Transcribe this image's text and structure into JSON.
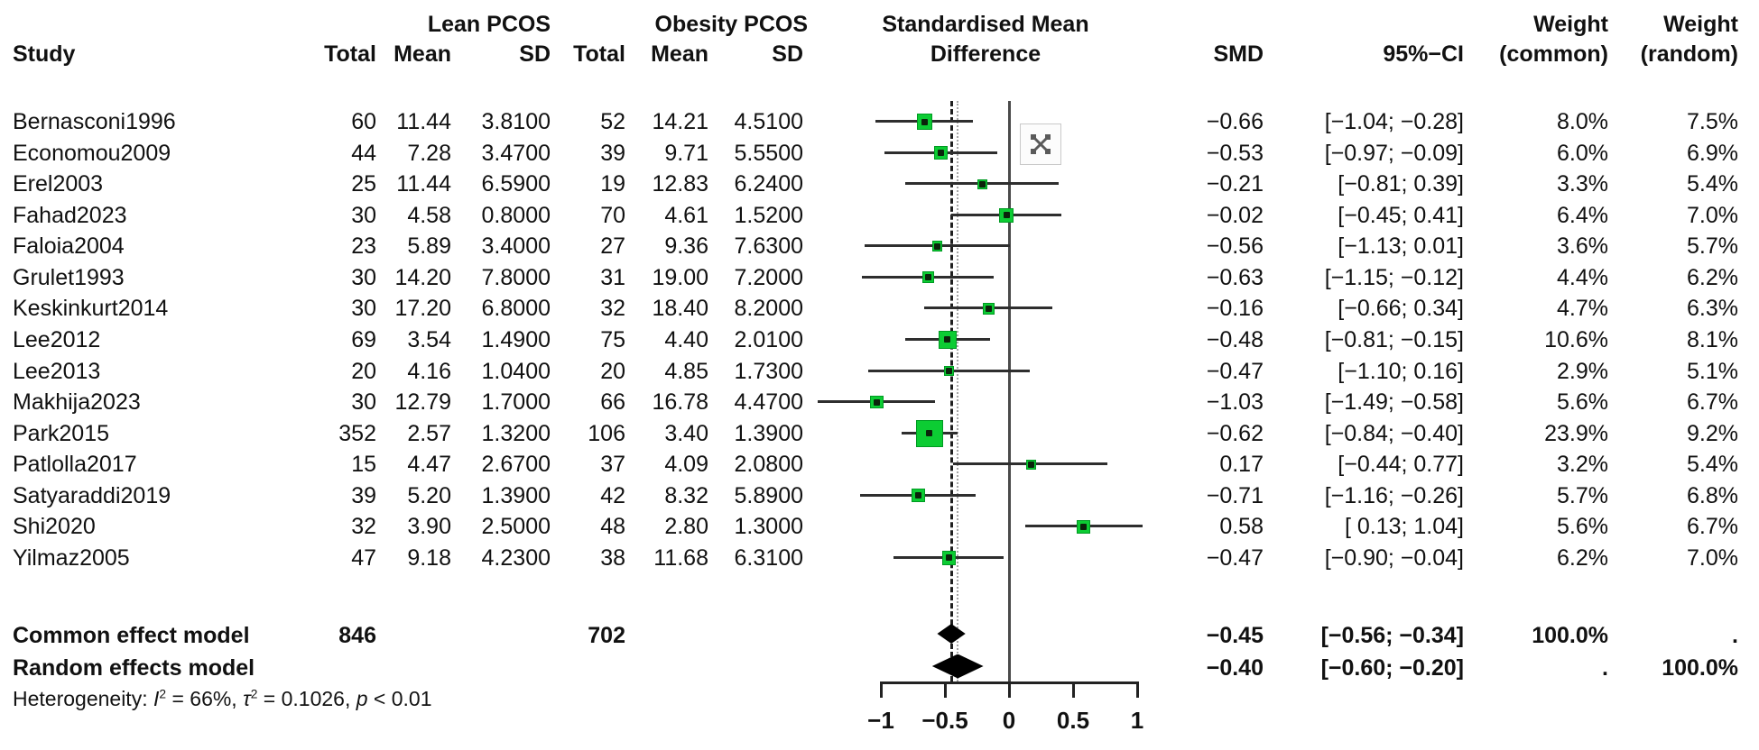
{
  "header": {
    "study": "Study",
    "group1_title": "Lean PCOS",
    "group2_title": "Obesity PCOS",
    "total_label": "Total",
    "mean_label": "Mean",
    "sd_label": "SD",
    "smd_title_line1": "Standardised Mean",
    "smd_title_line2": "Difference",
    "smd_label": "SMD",
    "ci_label": "95%−CI",
    "weight_label": "Weight",
    "weight_common_sub": "(common)",
    "weight_random_sub": "(random)"
  },
  "icons": {
    "broken_image_icon": "✕"
  },
  "colors": {
    "square_green": "#0ccc33",
    "diamond_black": "#000000",
    "zero_line": "#4a4a4a",
    "dashed_line": "#1f1f1f",
    "dotted_line": "#a6a6a6"
  },
  "chart_data": {
    "type": "forest",
    "effect_measure": "Standardised Mean Difference",
    "axis": {
      "tick_values": [
        -1,
        -0.5,
        0,
        0.5,
        1
      ],
      "tick_labels": [
        "−1",
        "−0.5",
        "0",
        "0.5",
        "1"
      ]
    },
    "reference_line": 0,
    "dashed_line_at": -0.45,
    "dotted_line_at": -0.4,
    "studies": [
      {
        "name": "Bernasconi1996",
        "lean_total": "60",
        "lean_mean": "11.44",
        "lean_sd": "3.8100",
        "ob_total": "52",
        "ob_mean": "14.21",
        "ob_sd": "4.5100",
        "smd": -0.66,
        "lo": -1.04,
        "hi": -0.28,
        "smd_text": "−0.66",
        "ci_text": "[−1.04; −0.28]",
        "w_common": "8.0%",
        "w_random": "7.5%",
        "w_common_val": 8.0
      },
      {
        "name": "Economou2009",
        "lean_total": "44",
        "lean_mean": "7.28",
        "lean_sd": "3.4700",
        "ob_total": "39",
        "ob_mean": "9.71",
        "ob_sd": "5.5500",
        "smd": -0.53,
        "lo": -0.97,
        "hi": -0.09,
        "smd_text": "−0.53",
        "ci_text": "[−0.97; −0.09]",
        "w_common": "6.0%",
        "w_random": "6.9%",
        "w_common_val": 6.0
      },
      {
        "name": "Erel2003",
        "lean_total": "25",
        "lean_mean": "11.44",
        "lean_sd": "6.5900",
        "ob_total": "19",
        "ob_mean": "12.83",
        "ob_sd": "6.2400",
        "smd": -0.21,
        "lo": -0.81,
        "hi": 0.39,
        "smd_text": "−0.21",
        "ci_text": "[−0.81; 0.39]",
        "w_common": "3.3%",
        "w_random": "5.4%",
        "w_common_val": 3.3
      },
      {
        "name": "Fahad2023",
        "lean_total": "30",
        "lean_mean": "4.58",
        "lean_sd": "0.8000",
        "ob_total": "70",
        "ob_mean": "4.61",
        "ob_sd": "1.5200",
        "smd": -0.02,
        "lo": -0.45,
        "hi": 0.41,
        "smd_text": "−0.02",
        "ci_text": "[−0.45; 0.41]",
        "w_common": "6.4%",
        "w_random": "7.0%",
        "w_common_val": 6.4
      },
      {
        "name": "Faloia2004",
        "lean_total": "23",
        "lean_mean": "5.89",
        "lean_sd": "3.4000",
        "ob_total": "27",
        "ob_mean": "9.36",
        "ob_sd": "7.6300",
        "smd": -0.56,
        "lo": -1.13,
        "hi": 0.01,
        "smd_text": "−0.56",
        "ci_text": "[−1.13; 0.01]",
        "w_common": "3.6%",
        "w_random": "5.7%",
        "w_common_val": 3.6
      },
      {
        "name": "Grulet1993",
        "lean_total": "30",
        "lean_mean": "14.20",
        "lean_sd": "7.8000",
        "ob_total": "31",
        "ob_mean": "19.00",
        "ob_sd": "7.2000",
        "smd": -0.63,
        "lo": -1.15,
        "hi": -0.12,
        "smd_text": "−0.63",
        "ci_text": "[−1.15; −0.12]",
        "w_common": "4.4%",
        "w_random": "6.2%",
        "w_common_val": 4.4
      },
      {
        "name": "Keskinkurt2014",
        "lean_total": "30",
        "lean_mean": "17.20",
        "lean_sd": "6.8000",
        "ob_total": "32",
        "ob_mean": "18.40",
        "ob_sd": "8.2000",
        "smd": -0.16,
        "lo": -0.66,
        "hi": 0.34,
        "smd_text": "−0.16",
        "ci_text": "[−0.66; 0.34]",
        "w_common": "4.7%",
        "w_random": "6.3%",
        "w_common_val": 4.7
      },
      {
        "name": "Lee2012",
        "lean_total": "69",
        "lean_mean": "3.54",
        "lean_sd": "1.4900",
        "ob_total": "75",
        "ob_mean": "4.40",
        "ob_sd": "2.0100",
        "smd": -0.48,
        "lo": -0.81,
        "hi": -0.15,
        "smd_text": "−0.48",
        "ci_text": "[−0.81; −0.15]",
        "w_common": "10.6%",
        "w_random": "8.1%",
        "w_common_val": 10.6
      },
      {
        "name": "Lee2013",
        "lean_total": "20",
        "lean_mean": "4.16",
        "lean_sd": "1.0400",
        "ob_total": "20",
        "ob_mean": "4.85",
        "ob_sd": "1.7300",
        "smd": -0.47,
        "lo": -1.1,
        "hi": 0.16,
        "smd_text": "−0.47",
        "ci_text": "[−1.10; 0.16]",
        "w_common": "2.9%",
        "w_random": "5.1%",
        "w_common_val": 2.9
      },
      {
        "name": "Makhija2023",
        "lean_total": "30",
        "lean_mean": "12.79",
        "lean_sd": "1.7000",
        "ob_total": "66",
        "ob_mean": "16.78",
        "ob_sd": "4.4700",
        "smd": -1.03,
        "lo": -1.49,
        "hi": -0.58,
        "smd_text": "−1.03",
        "ci_text": "[−1.49; −0.58]",
        "w_common": "5.6%",
        "w_random": "6.7%",
        "w_common_val": 5.6
      },
      {
        "name": "Park2015",
        "lean_total": "352",
        "lean_mean": "2.57",
        "lean_sd": "1.3200",
        "ob_total": "106",
        "ob_mean": "3.40",
        "ob_sd": "1.3900",
        "smd": -0.62,
        "lo": -0.84,
        "hi": -0.4,
        "smd_text": "−0.62",
        "ci_text": "[−0.84; −0.40]",
        "w_common": "23.9%",
        "w_random": "9.2%",
        "w_common_val": 23.9
      },
      {
        "name": "Patlolla2017",
        "lean_total": "15",
        "lean_mean": "4.47",
        "lean_sd": "2.6700",
        "ob_total": "37",
        "ob_mean": "4.09",
        "ob_sd": "2.0800",
        "smd": 0.17,
        "lo": -0.44,
        "hi": 0.77,
        "smd_text": "0.17",
        "ci_text": "[−0.44; 0.77]",
        "w_common": "3.2%",
        "w_random": "5.4%",
        "w_common_val": 3.2
      },
      {
        "name": "Satyaraddi2019",
        "lean_total": "39",
        "lean_mean": "5.20",
        "lean_sd": "1.3900",
        "ob_total": "42",
        "ob_mean": "8.32",
        "ob_sd": "5.8900",
        "smd": -0.71,
        "lo": -1.16,
        "hi": -0.26,
        "smd_text": "−0.71",
        "ci_text": "[−1.16; −0.26]",
        "w_common": "5.7%",
        "w_random": "6.8%",
        "w_common_val": 5.7
      },
      {
        "name": "Shi2020",
        "lean_total": "32",
        "lean_mean": "3.90",
        "lean_sd": "2.5000",
        "ob_total": "48",
        "ob_mean": "2.80",
        "ob_sd": "1.3000",
        "smd": 0.58,
        "lo": 0.13,
        "hi": 1.04,
        "smd_text": "0.58",
        "ci_text": "[ 0.13; 1.04]",
        "w_common": "5.6%",
        "w_random": "6.7%",
        "w_common_val": 5.6
      },
      {
        "name": "Yilmaz2005",
        "lean_total": "47",
        "lean_mean": "9.18",
        "lean_sd": "4.2300",
        "ob_total": "38",
        "ob_mean": "11.68",
        "ob_sd": "6.3100",
        "smd": -0.47,
        "lo": -0.9,
        "hi": -0.04,
        "smd_text": "−0.47",
        "ci_text": "[−0.90; −0.04]",
        "w_common": "6.2%",
        "w_random": "7.0%",
        "w_common_val": 6.2
      }
    ],
    "models": [
      {
        "name": "Common effect model",
        "lean_total": "846",
        "ob_total": "702",
        "smd": -0.45,
        "lo": -0.56,
        "hi": -0.34,
        "smd_text": "−0.45",
        "ci_text": "[−0.56; −0.34]",
        "w_common": "100.0%",
        "w_random": "."
      },
      {
        "name": "Random effects model",
        "lean_total": "",
        "ob_total": "",
        "smd": -0.4,
        "lo": -0.6,
        "hi": -0.2,
        "smd_text": "−0.40",
        "ci_text": "[−0.60; −0.20]",
        "w_common": ".",
        "w_random": "100.0%"
      }
    ],
    "heterogeneity": {
      "prefix": "Heterogeneity: ",
      "i_sym": "I",
      "i_sup": "2",
      "i_rest": " = 66%, ",
      "tau_sym": "τ",
      "tau_sup": "2",
      "tau_rest": " = 0.1026, ",
      "p_sym": "p",
      "p_rest": " < 0.01"
    }
  }
}
